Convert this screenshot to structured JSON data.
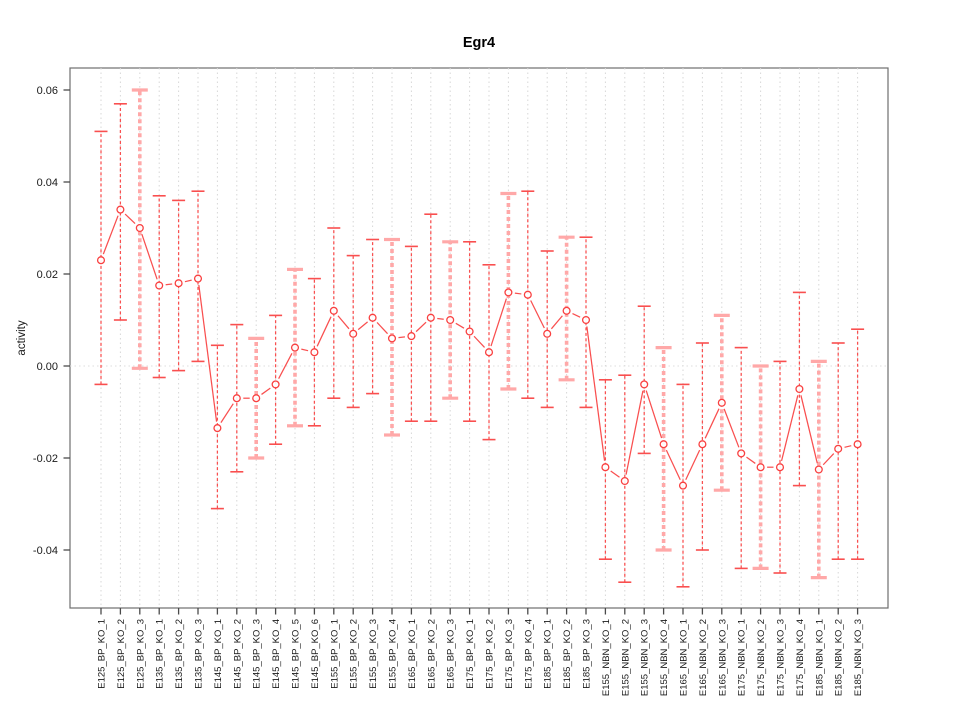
{
  "window": {
    "background": "#ffffff"
  },
  "chart_data": {
    "type": "line",
    "subtype": "points-with-error-bars",
    "title": "Egr4",
    "xlabel": "",
    "ylabel": "activity",
    "ylim": [
      -0.052,
      0.065
    ],
    "yticks": [
      0.06,
      0.04,
      0.02,
      0.0,
      -0.02,
      -0.04
    ],
    "ytick_labels": [
      "0.06",
      "0.04",
      "0.02",
      "0.00",
      "-0.02",
      "-0.04"
    ],
    "grid": "vertical-dotted-per-category",
    "zero_reference_line": true,
    "legend": "none",
    "categories": [
      "E125_BP_KO_1",
      "E125_BP_KO_2",
      "E125_BP_KO_3",
      "E135_BP_KO_1",
      "E135_BP_KO_2",
      "E135_BP_KO_3",
      "E145_BP_KO_1",
      "E145_BP_KO_2",
      "E145_BP_KO_3",
      "E145_BP_KO_4",
      "E145_BP_KO_5",
      "E145_BP_KO_6",
      "E155_BP_KO_1",
      "E155_BP_KO_2",
      "E155_BP_KO_3",
      "E155_BP_KO_4",
      "E165_BP_KO_1",
      "E165_BP_KO_2",
      "E165_BP_KO_3",
      "E175_BP_KO_1",
      "E175_BP_KO_2",
      "E175_BP_KO_3",
      "E175_BP_KO_4",
      "E185_BP_KO_1",
      "E185_BP_KO_2",
      "E185_BP_KO_3",
      "E155_NBN_KO_1",
      "E155_NBN_KO_2",
      "E155_NBN_KO_3",
      "E155_NBN_KO_4",
      "E165_NBN_KO_1",
      "E165_NBN_KO_2",
      "E165_NBN_KO_3",
      "E175_NBN_KO_1",
      "E175_NBN_KO_2",
      "E175_NBN_KO_3",
      "E175_NBN_KO_4",
      "E185_NBN_KO_1",
      "E185_NBN_KO_2",
      "E185_NBN_KO_3"
    ],
    "values": [
      0.023,
      0.034,
      0.03,
      0.0175,
      0.018,
      0.019,
      -0.0135,
      -0.007,
      -0.007,
      -0.004,
      0.004,
      0.003,
      0.012,
      0.007,
      0.0105,
      0.006,
      0.0065,
      0.0105,
      0.01,
      0.0075,
      0.003,
      0.016,
      0.0155,
      0.007,
      0.012,
      0.01,
      -0.022,
      -0.025,
      -0.004,
      -0.017,
      -0.026,
      -0.017,
      -0.008,
      -0.019,
      -0.022,
      -0.022,
      -0.005,
      -0.0225,
      -0.018,
      -0.017
    ],
    "err_low": [
      -0.004,
      0.01,
      -0.0005,
      -0.0025,
      -0.001,
      0.001,
      -0.031,
      -0.023,
      -0.02,
      -0.017,
      -0.013,
      -0.013,
      -0.007,
      -0.009,
      -0.006,
      -0.015,
      -0.012,
      -0.012,
      -0.007,
      -0.012,
      -0.016,
      -0.005,
      -0.007,
      -0.009,
      -0.003,
      -0.009,
      -0.042,
      -0.047,
      -0.019,
      -0.04,
      -0.048,
      -0.04,
      -0.027,
      -0.044,
      -0.044,
      -0.045,
      -0.026,
      -0.046,
      -0.042,
      -0.042
    ],
    "err_high": [
      0.051,
      0.057,
      0.06,
      0.037,
      0.036,
      0.038,
      0.0045,
      0.009,
      0.006,
      0.011,
      0.021,
      0.019,
      0.03,
      0.024,
      0.0275,
      0.0275,
      0.026,
      0.033,
      0.027,
      0.027,
      0.022,
      0.0375,
      0.038,
      0.025,
      0.028,
      0.028,
      -0.003,
      -0.002,
      0.013,
      0.004,
      -0.004,
      0.005,
      0.011,
      0.004,
      0.0,
      0.001,
      0.016,
      0.001,
      0.005,
      0.008
    ],
    "heavy_bar": [
      false,
      false,
      true,
      false,
      false,
      false,
      false,
      false,
      true,
      false,
      true,
      false,
      false,
      false,
      false,
      true,
      false,
      false,
      true,
      false,
      false,
      true,
      false,
      false,
      true,
      false,
      false,
      false,
      false,
      true,
      false,
      false,
      true,
      false,
      true,
      false,
      false,
      true,
      false,
      false
    ]
  },
  "colors": {
    "point_stroke": "#f94040",
    "segment_line": "#f94f4f",
    "error_bar_thin": "#f94f4f",
    "error_bar_heavy": "#ffa8a8",
    "gridline": "#d7d7d7",
    "zero_line": "#dcdcdc",
    "plot_border": "#6e6e6e",
    "axis_tick": "#4a4a4a",
    "tick_label": "#1a1a1a",
    "title_color": "#000000"
  }
}
